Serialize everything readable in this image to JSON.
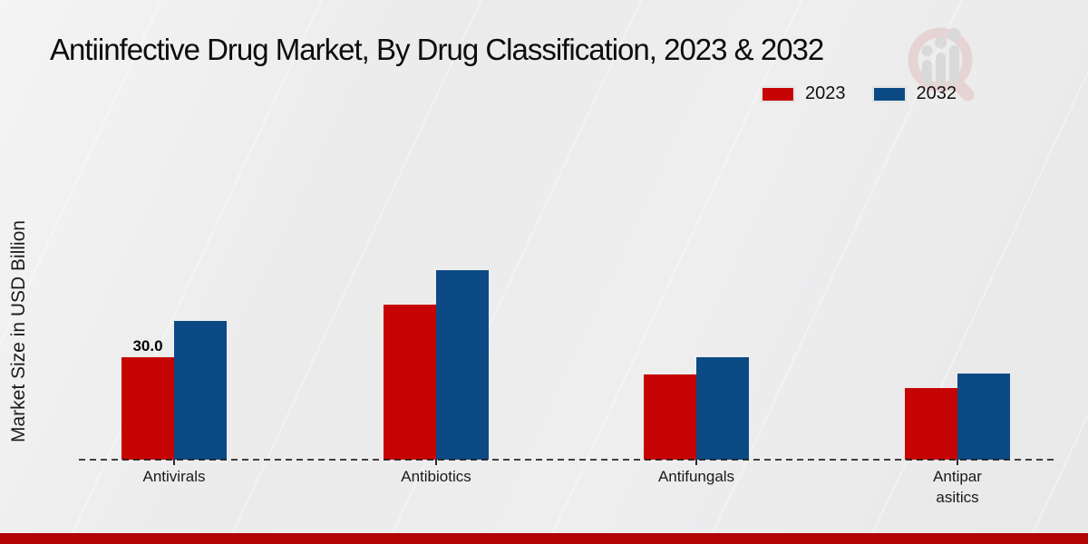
{
  "title": "Antiinfective Drug Market, By Drug Classification, 2023 & 2032",
  "ylabel": "Market Size in USD Billion",
  "colors": {
    "series_2023": "#c70404",
    "series_2032": "#0b4a84",
    "bottom_band": "#b20404",
    "axis": "#2b2b2b",
    "background": "#ececed"
  },
  "icons": {
    "watermark_logo": "magnifier-bar-chart-logo"
  },
  "legend": {
    "entries": [
      {
        "label": "2023",
        "color": "#c70404"
      },
      {
        "label": "2032",
        "color": "#0b4a84"
      }
    ]
  },
  "chart_data": {
    "type": "bar",
    "title": "Antiinfective Drug Market, By Drug Classification, 2023 & 2032",
    "xlabel": "",
    "ylabel": "Market Size in USD Billion",
    "categories": [
      "Antivirals",
      "Antibiotics",
      "Antifungals",
      "Antiparasitics"
    ],
    "display_labels": [
      "Antivirals",
      "Antibiotics",
      "Antifungals",
      "Antipar asitics"
    ],
    "series": [
      {
        "name": "2023",
        "color": "#c70404",
        "values": [
          30.0,
          45.4,
          25.0,
          21.0
        ]
      },
      {
        "name": "2032",
        "color": "#0b4a84",
        "values": [
          40.6,
          55.5,
          30.0,
          25.2
        ]
      }
    ],
    "bar_value_labels": [
      {
        "category": "Antivirals",
        "series": "2023",
        "text": "30.0"
      }
    ],
    "ylim": [
      0,
      60
    ],
    "grid": false,
    "y_ticks_visible": false,
    "legend_position": "top-right",
    "baseline_style": "dashed"
  }
}
